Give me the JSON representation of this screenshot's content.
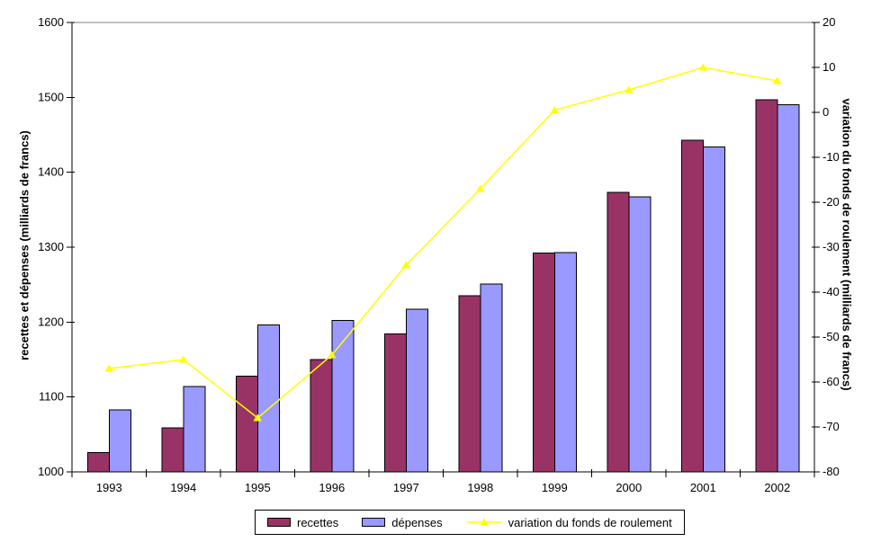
{
  "axes": {
    "left_title": "recettes et dépenses (milliards de francs)",
    "right_title": "variation du fonds de roulement (milliards de francs)"
  },
  "legend": {
    "items": [
      {
        "label": "recettes",
        "swatch": "bar",
        "color": "#993366"
      },
      {
        "label": "dépenses",
        "swatch": "bar",
        "color": "#9999FF"
      },
      {
        "label": "variation du fonds de roulement",
        "swatch": "line-triangle-marker",
        "color": "#FFFF00"
      }
    ]
  },
  "colors": {
    "recettes": "#993366",
    "depenses": "#9999FF",
    "variation_line": "#FFFF00",
    "axis": "#000000",
    "top_border": "#808080",
    "background": "#FFFFFF"
  },
  "chart_data": {
    "type": "bar",
    "subtype": "bar+line combo, dual y-axes",
    "title": "",
    "categories": [
      "1993",
      "1994",
      "1995",
      "1996",
      "1997",
      "1998",
      "1999",
      "2000",
      "2001",
      "2002"
    ],
    "series": [
      {
        "name": "recettes",
        "type": "bar",
        "axis": "left",
        "color": "#993366",
        "values": [
          1026,
          1059,
          1128,
          1150,
          1184,
          1235,
          1292,
          1373,
          1443,
          1497
        ]
      },
      {
        "name": "dépenses",
        "type": "bar",
        "axis": "left",
        "color": "#9999FF",
        "values": [
          1083,
          1114,
          1196,
          1202,
          1217,
          1251,
          1293,
          1367,
          1434,
          1490
        ]
      },
      {
        "name": "variation du fonds de roulement",
        "type": "line",
        "axis": "right",
        "color": "#FFFF00",
        "marker": "triangle",
        "values": [
          -57,
          -55,
          -68,
          -54,
          -34,
          -17,
          0.5,
          5,
          10,
          7
        ]
      }
    ],
    "left_axis": {
      "title": "recettes et dépenses (milliards de francs)",
      "min": 1000,
      "max": 1600,
      "step": 100,
      "ticks": [
        1000,
        1100,
        1200,
        1300,
        1400,
        1500,
        1600
      ]
    },
    "right_axis": {
      "title": "variation du fonds de roulement (milliards de francs)",
      "min": -80,
      "max": 20,
      "step": 10,
      "ticks": [
        20,
        10,
        0,
        -10,
        -20,
        -30,
        -40,
        -50,
        -60,
        -70,
        -80
      ]
    },
    "xlabel": "",
    "ylabel": "recettes et dépenses (milliards de francs)",
    "grid": "top border line only, no gridlines",
    "legend_position": "bottom"
  }
}
